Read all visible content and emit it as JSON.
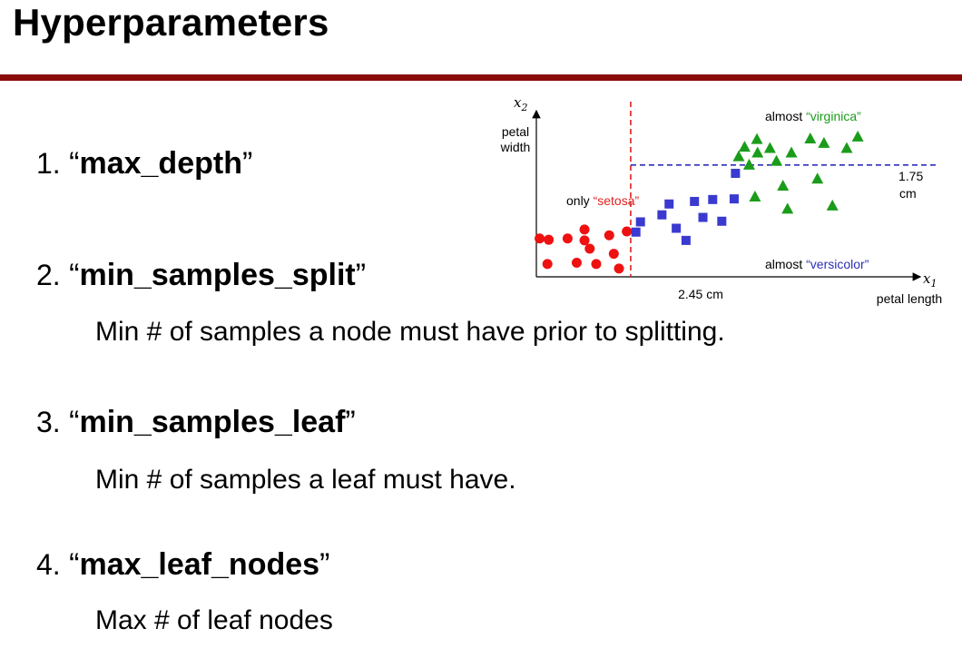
{
  "slide": {
    "title": "Hyperparameters",
    "accent_color": "#8b0a0a"
  },
  "items": [
    {
      "number": "1.",
      "open_quote": "“",
      "name": "max_depth",
      "close_quote": "”",
      "description": ""
    },
    {
      "number": "2.",
      "open_quote": "“",
      "name": "min_samples_split",
      "close_quote": "”",
      "description": "Min # of samples a node must have prior to splitting."
    },
    {
      "number": "3.",
      "open_quote": "“",
      "name": "min_samples_leaf",
      "close_quote": "”",
      "description": "Min # of samples a leaf must have."
    },
    {
      "number": "4.",
      "open_quote": "“",
      "name": "max_leaf_nodes",
      "close_quote": "”",
      "description": "Max # of leaf nodes"
    }
  ],
  "chart_data": {
    "type": "scatter",
    "x_axis_symbol": "x1",
    "x_axis_subscript": "1",
    "y_axis_symbol": "x2",
    "y_axis_subscript": "2",
    "xlabel": "petal length",
    "ylabel_line1": "petal",
    "ylabel_line2": "width",
    "xlim": [
      1.0,
      6.9
    ],
    "ylim": [
      0.0,
      2.6
    ],
    "vertical_split": {
      "x": 2.45,
      "label": "2.45 cm",
      "color": "#e02020"
    },
    "horizontal_split": {
      "y": 1.75,
      "label_line1": "1.75",
      "label_line2": "cm",
      "color": "#2e2eb8"
    },
    "annotations": {
      "setosa": {
        "prefix": "only ",
        "name": "“setosa”",
        "color": "#e02020"
      },
      "virginica": {
        "prefix": "almost ",
        "name": "“virginica”",
        "color": "#1a9c1a"
      },
      "versicolor": {
        "prefix": "almost ",
        "name": "“versicolor”",
        "color": "#2e2eb8"
      }
    },
    "series": [
      {
        "marker": "circle",
        "color": "#ee1111",
        "points": [
          [
            1.05,
            0.6
          ],
          [
            1.17,
            0.2
          ],
          [
            1.19,
            0.58
          ],
          [
            1.48,
            0.6
          ],
          [
            1.62,
            0.22
          ],
          [
            1.74,
            0.57
          ],
          [
            1.74,
            0.74
          ],
          [
            1.82,
            0.44
          ],
          [
            1.92,
            0.2
          ],
          [
            2.12,
            0.65
          ],
          [
            2.19,
            0.36
          ],
          [
            2.27,
            0.13
          ],
          [
            2.39,
            0.71
          ]
        ]
      },
      {
        "marker": "square",
        "color": "#3a3ad0",
        "points": [
          [
            2.53,
            0.7
          ],
          [
            2.6,
            0.86
          ],
          [
            2.93,
            0.97
          ],
          [
            3.04,
            1.14
          ],
          [
            3.15,
            0.76
          ],
          [
            3.3,
            0.57
          ],
          [
            3.43,
            1.18
          ],
          [
            3.56,
            0.93
          ],
          [
            3.71,
            1.21
          ],
          [
            3.85,
            0.87
          ],
          [
            4.04,
            1.22
          ],
          [
            4.06,
            1.62
          ]
        ]
      },
      {
        "marker": "triangle",
        "color": "#1a9c1a",
        "points": [
          [
            4.11,
            1.88
          ],
          [
            4.2,
            2.03
          ],
          [
            4.27,
            1.75
          ],
          [
            4.39,
            2.15
          ],
          [
            4.4,
            1.94
          ],
          [
            4.36,
            1.25
          ],
          [
            4.59,
            2.01
          ],
          [
            4.69,
            1.81
          ],
          [
            4.79,
            1.42
          ],
          [
            4.86,
            1.06
          ],
          [
            4.92,
            1.94
          ],
          [
            5.21,
            2.16
          ],
          [
            5.32,
            1.53
          ],
          [
            5.42,
            2.09
          ],
          [
            5.55,
            1.11
          ],
          [
            5.77,
            2.01
          ],
          [
            5.94,
            2.19
          ]
        ]
      }
    ]
  }
}
